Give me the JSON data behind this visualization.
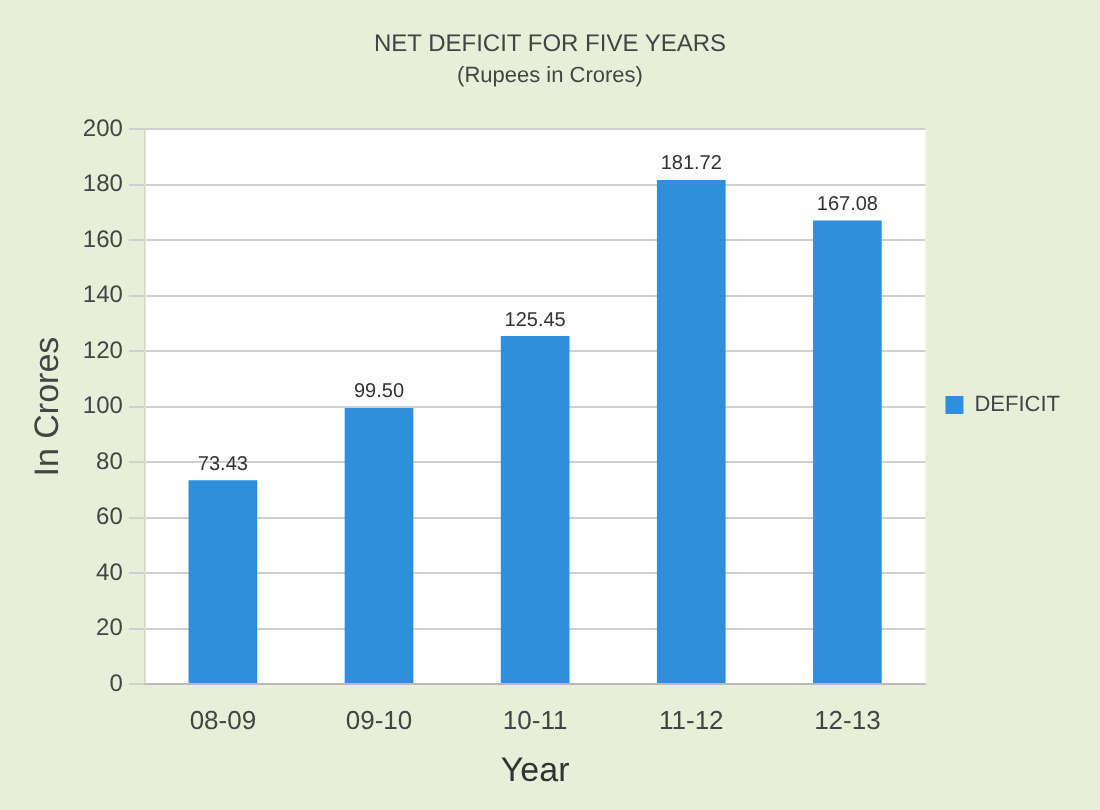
{
  "chart_data": {
    "type": "bar",
    "title": "NET DEFICIT FOR FIVE YEARS",
    "subtitle": "(Rupees in Crores)",
    "xlabel": "Year",
    "ylabel": "In Crores",
    "categories": [
      "08-09",
      "09-10",
      "10-11",
      "11-12",
      "12-13"
    ],
    "series": [
      {
        "name": "DEFICIT",
        "color": "#2f8fdc",
        "values": [
          73.43,
          99.5,
          125.45,
          181.72,
          167.08
        ]
      }
    ],
    "value_labels": [
      "73.43",
      "99.50",
      "125.45",
      "181.72",
      "167.08"
    ],
    "ylim": [
      0,
      200
    ],
    "yticks": [
      0,
      20,
      40,
      60,
      80,
      100,
      120,
      140,
      160,
      180,
      200
    ],
    "grid": "y",
    "legend": "right"
  }
}
